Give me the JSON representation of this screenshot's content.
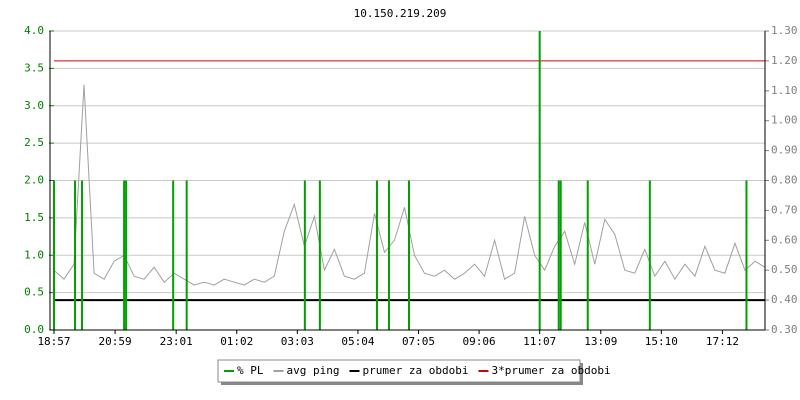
{
  "chart_data": {
    "type": "line",
    "title": "10.150.219.209",
    "xlim": [
      0,
      1420
    ],
    "xticks": [
      {
        "value": 0,
        "label": "18:57"
      },
      {
        "value": 122,
        "label": "20:59"
      },
      {
        "value": 244,
        "label": "23:01"
      },
      {
        "value": 365,
        "label": "01:02"
      },
      {
        "value": 486,
        "label": "03:03"
      },
      {
        "value": 607,
        "label": "05:04"
      },
      {
        "value": 728,
        "label": "07:05"
      },
      {
        "value": 849,
        "label": "09:06"
      },
      {
        "value": 970,
        "label": "11:07"
      },
      {
        "value": 1092,
        "label": "13:09"
      },
      {
        "value": 1213,
        "label": "15:10"
      },
      {
        "value": 1335,
        "label": "17:12"
      }
    ],
    "ylim": [
      0,
      4
    ],
    "yticks": [
      {
        "value": 0,
        "label": "0.0"
      },
      0.5,
      {
        "value": 1,
        "label": "1.0"
      },
      1.5,
      {
        "value": 2,
        "label": "2.0"
      },
      2.5,
      {
        "value": 3,
        "label": "3.0"
      },
      3.5,
      {
        "value": 4,
        "label": "4.0"
      }
    ],
    "y2lim": [
      0.3,
      1.3
    ],
    "y2ticks": [
      {
        "value": 0.3,
        "label": "0.30"
      },
      {
        "value": 0.4,
        "label": "0.40"
      },
      {
        "value": 0.5,
        "label": "0.50"
      },
      {
        "value": 0.6,
        "label": "0.60"
      },
      {
        "value": 0.7,
        "label": "0.70"
      },
      {
        "value": 0.8,
        "label": "0.80"
      },
      {
        "value": 0.9,
        "label": "0.90"
      },
      {
        "value": 1.0,
        "label": "1.00"
      },
      {
        "value": 1.1,
        "label": "1.10"
      },
      {
        "value": 1.2,
        "label": "1.20"
      },
      {
        "value": 1.3,
        "label": "1.30"
      }
    ],
    "grid": true,
    "series": [
      {
        "name": "% PL",
        "color": "#00a000",
        "style": "stem",
        "x": [
          0,
          42,
          56,
          140,
          144,
          238,
          265,
          501,
          531,
          645,
          669,
          709,
          970,
          1008,
          1012,
          1066,
          1190,
          1383
        ],
        "values": [
          2,
          2,
          2,
          2,
          2,
          2,
          2,
          2,
          2,
          2,
          2,
          2,
          4,
          2,
          2,
          2,
          2,
          2
        ]
      },
      {
        "name": "avg ping",
        "color": "#a0a0a0",
        "axis": "y2",
        "style": "line",
        "x": [
          0,
          20,
          40,
          60,
          80,
          100,
          120,
          140,
          160,
          180,
          200,
          220,
          240,
          260,
          280,
          300,
          320,
          340,
          360,
          380,
          400,
          420,
          440,
          460,
          480,
          500,
          520,
          540,
          560,
          580,
          600,
          620,
          640,
          660,
          680,
          700,
          720,
          740,
          760,
          780,
          800,
          820,
          840,
          860,
          880,
          900,
          920,
          940,
          960,
          980,
          1000,
          1020,
          1040,
          1060,
          1080,
          1100,
          1120,
          1140,
          1160,
          1180,
          1200,
          1220,
          1240,
          1260,
          1280,
          1300,
          1320,
          1340,
          1360,
          1380,
          1400,
          1420
        ],
        "values": [
          0.5,
          0.47,
          0.52,
          1.12,
          0.49,
          0.47,
          0.53,
          0.55,
          0.48,
          0.47,
          0.51,
          0.46,
          0.49,
          0.47,
          0.45,
          0.46,
          0.45,
          0.47,
          0.46,
          0.45,
          0.47,
          0.46,
          0.48,
          0.63,
          0.72,
          0.58,
          0.68,
          0.5,
          0.57,
          0.48,
          0.47,
          0.49,
          0.69,
          0.56,
          0.6,
          0.71,
          0.55,
          0.49,
          0.48,
          0.5,
          0.47,
          0.49,
          0.52,
          0.48,
          0.6,
          0.47,
          0.49,
          0.68,
          0.55,
          0.5,
          0.58,
          0.63,
          0.52,
          0.66,
          0.52,
          0.67,
          0.62,
          0.5,
          0.49,
          0.57,
          0.48,
          0.53,
          0.47,
          0.52,
          0.48,
          0.58,
          0.5,
          0.49,
          0.59,
          0.5,
          0.53,
          0.51
        ]
      },
      {
        "name": "prumer za obdobi",
        "color": "#000000",
        "axis": "y2",
        "style": "level",
        "values": [
          0.4
        ]
      },
      {
        "name": "3*prumer za obdobi",
        "color": "#d00000",
        "axis": "y2",
        "style": "level",
        "values": [
          1.2
        ]
      }
    ]
  }
}
